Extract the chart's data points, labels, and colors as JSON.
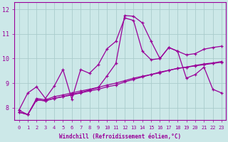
{
  "bg_color": "#cce8e8",
  "line_color": "#990099",
  "grid_color": "#aacccc",
  "xlabel": "Windchill (Refroidissement éolien,°C)",
  "xlim": [
    -0.5,
    23.5
  ],
  "ylim": [
    7.5,
    12.3
  ],
  "xticks": [
    0,
    1,
    2,
    3,
    4,
    5,
    6,
    7,
    8,
    9,
    10,
    11,
    12,
    13,
    14,
    15,
    16,
    17,
    18,
    19,
    20,
    21,
    22,
    23
  ],
  "yticks": [
    8,
    9,
    10,
    11,
    12
  ],
  "curve1_x": [
    0,
    1,
    2,
    3,
    4,
    5,
    6,
    7,
    8,
    9,
    10,
    11,
    12,
    13,
    14,
    15,
    16,
    17,
    18,
    19,
    20,
    21,
    22,
    23
  ],
  "curve1_y": [
    7.82,
    7.72,
    8.38,
    8.32,
    8.45,
    8.52,
    8.6,
    8.68,
    8.75,
    8.83,
    8.92,
    9.0,
    9.1,
    9.2,
    9.28,
    9.35,
    9.45,
    9.52,
    9.6,
    9.65,
    9.7,
    9.75,
    9.8,
    9.85
  ],
  "curve2_x": [
    0,
    1,
    2,
    3,
    4,
    5,
    6,
    7,
    8,
    9,
    10,
    11,
    12,
    13,
    14,
    15,
    16,
    17,
    18,
    19,
    20,
    21,
    22,
    23
  ],
  "curve2_y": [
    7.9,
    7.72,
    8.32,
    8.28,
    8.38,
    8.45,
    8.52,
    8.6,
    8.68,
    8.75,
    8.85,
    8.92,
    9.05,
    9.15,
    9.25,
    9.35,
    9.42,
    9.52,
    9.6,
    9.65,
    9.72,
    9.78,
    9.82,
    9.88
  ],
  "curve3_x": [
    0,
    1,
    2,
    3,
    4,
    5,
    6,
    7,
    8,
    9,
    10,
    11,
    12,
    13,
    14,
    15,
    16,
    17,
    18,
    19,
    20,
    21,
    22,
    23
  ],
  "curve3_y": [
    7.9,
    8.6,
    8.85,
    8.38,
    8.88,
    9.55,
    8.35,
    9.55,
    9.4,
    9.75,
    10.4,
    10.7,
    11.65,
    11.55,
    10.3,
    9.95,
    10.0,
    10.45,
    10.3,
    9.2,
    9.35,
    9.65,
    8.75,
    8.6
  ],
  "curve4_x": [
    0,
    1,
    2,
    3,
    4,
    5,
    6,
    7,
    8,
    9,
    10,
    11,
    12,
    13,
    14,
    15,
    16,
    17,
    18,
    19,
    20,
    21,
    22,
    23
  ],
  "curve4_y": [
    7.82,
    7.72,
    8.32,
    8.28,
    8.38,
    8.45,
    8.55,
    8.62,
    8.72,
    8.82,
    9.3,
    9.8,
    11.75,
    11.72,
    11.45,
    10.7,
    10.0,
    10.45,
    10.3,
    10.15,
    10.2,
    10.38,
    10.45,
    10.5
  ]
}
